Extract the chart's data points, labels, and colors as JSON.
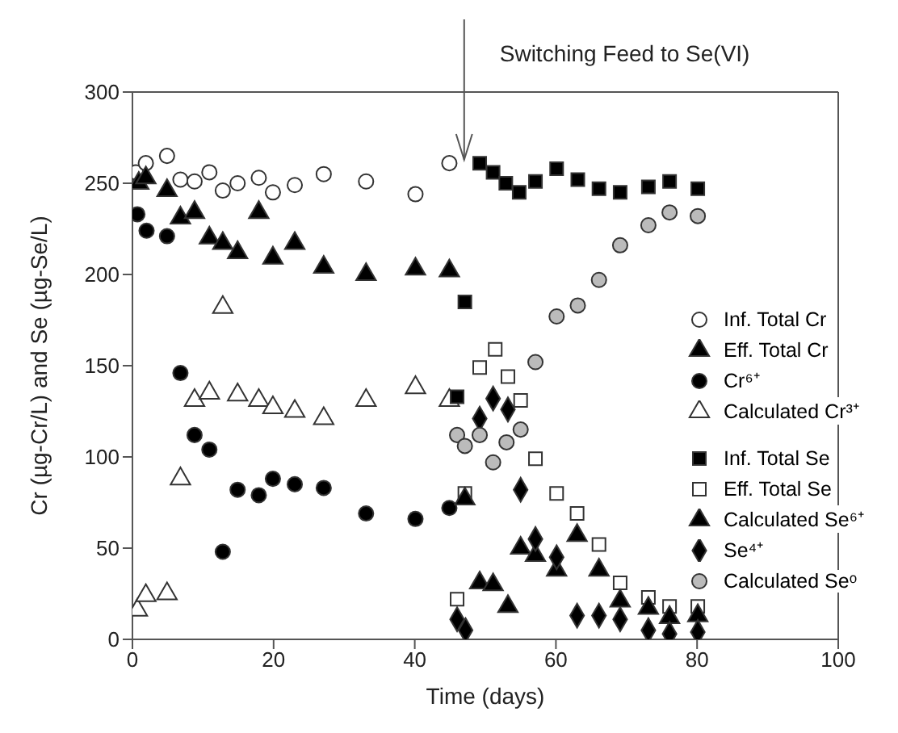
{
  "chart_data": {
    "type": "scatter",
    "xlabel": "Time (days)",
    "ylabel": "Cr (µg-Cr/L) and Se (µg-Se/L)",
    "xlim": [
      0,
      100
    ],
    "xticks": [
      0,
      20,
      40,
      60,
      80,
      100
    ],
    "ylim": [
      0,
      300
    ],
    "yticks": [
      0,
      50,
      100,
      150,
      200,
      250,
      300
    ],
    "grid": false,
    "legend": "right",
    "ref_lines": [
      {
        "axis": "x",
        "value": 47,
        "label": "Switching Feed to Se(VI)",
        "color": "#555555"
      }
    ],
    "series": [
      {
        "name": "Inf. Total Cr",
        "color": "#ffffff",
        "marker": "circle",
        "x": [
          0.5,
          1.9,
          4.9,
          6.8,
          8.8,
          10.9,
          12.8,
          14.9,
          17.9,
          19.9,
          23,
          27.1,
          33.1,
          40.1,
          44.9
        ],
        "values": [
          256,
          261,
          265,
          252,
          251,
          256,
          246,
          250,
          253,
          245,
          249,
          255,
          251,
          244,
          261
        ]
      },
      {
        "name": "Eff. Total Cr",
        "color": "#000000",
        "marker": "triangle",
        "x": [
          0.9,
          1.9,
          4.9,
          6.8,
          8.8,
          10.9,
          12.8,
          14.9,
          17.9,
          19.9,
          23,
          27.1,
          33.1,
          40.1,
          44.9
        ],
        "values": [
          250,
          253,
          246,
          231,
          234,
          220,
          217,
          212,
          234,
          209,
          217,
          204,
          200,
          203,
          202
        ]
      },
      {
        "name": "Cr⁶⁺",
        "color": "#000000",
        "marker": "circle",
        "x": [
          0.7,
          2,
          4.9,
          6.8,
          8.8,
          10.9,
          12.8,
          14.9,
          17.9,
          19.9,
          23,
          27.1,
          33.1,
          40.1,
          44.9
        ],
        "values": [
          233,
          224,
          221,
          146,
          112,
          104,
          48,
          82,
          79,
          88,
          85,
          83,
          69,
          66,
          72
        ]
      },
      {
        "name": "Calculated Cr³⁺",
        "color": "#ffffff",
        "marker": "triangle",
        "x": [
          0.7,
          1.9,
          4.9,
          6.8,
          8.8,
          10.9,
          12.8,
          14.9,
          17.9,
          19.9,
          23,
          27.1,
          33.1,
          40.1,
          44.9
        ],
        "values": [
          16,
          24,
          25,
          88,
          131,
          135,
          182,
          134,
          131,
          127,
          125,
          121,
          131,
          138,
          131
        ]
      },
      {
        "name": "Inf. Total Se",
        "color": "#000000",
        "marker": "square",
        "x": [
          46,
          47.1,
          49.2,
          51.1,
          52.9,
          54.8,
          57.1,
          60.1,
          63.1,
          66.1,
          69.1,
          73.1,
          76.1,
          80.1
        ],
        "values": [
          133,
          185,
          261,
          256,
          250,
          245,
          251,
          258,
          252,
          247,
          245,
          248,
          251,
          247
        ]
      },
      {
        "name": "Eff. Total Se",
        "color": "#ffffff",
        "marker": "square",
        "x": [
          46,
          47.1,
          49.2,
          51.4,
          53.2,
          55,
          57.1,
          60.1,
          63,
          66.1,
          69.1,
          73.1,
          76.1,
          80.1
        ],
        "values": [
          22,
          80,
          149,
          159,
          144,
          131,
          99,
          80,
          69,
          52,
          31,
          23,
          18,
          18
        ]
      },
      {
        "name": "Calculated Se⁶⁺",
        "color": "#000000",
        "marker": "triangle",
        "x": [
          47.1,
          49.2,
          51.1,
          53.2,
          55,
          57.1,
          60.1,
          63,
          66.1,
          69.1,
          73.1,
          76.1,
          80.1
        ],
        "values": [
          77,
          31,
          30,
          18,
          50,
          46,
          38,
          57,
          38,
          21,
          17,
          12,
          13
        ]
      },
      {
        "name": "Se⁴⁺",
        "color": "#000000",
        "marker": "diamond",
        "x": [
          46,
          47.2,
          49.2,
          51.1,
          53.2,
          55,
          57.1,
          60.1,
          63,
          66.1,
          69.1,
          73.1,
          76.1,
          80.1
        ],
        "values": [
          11,
          5,
          121,
          132,
          126,
          82,
          55,
          45,
          13,
          13,
          11,
          5,
          3,
          4
        ]
      },
      {
        "name": "Calculated Seᵒ",
        "color": "#bbbbbb",
        "marker": "circle",
        "x": [
          46,
          47.1,
          49.2,
          51.1,
          53,
          55,
          57.1,
          60.1,
          63.1,
          66.1,
          69.1,
          73.1,
          76.1,
          80.1
        ],
        "values": [
          112,
          106,
          112,
          97,
          108,
          115,
          152,
          177,
          183,
          197,
          216,
          227,
          234,
          232
        ]
      }
    ]
  }
}
